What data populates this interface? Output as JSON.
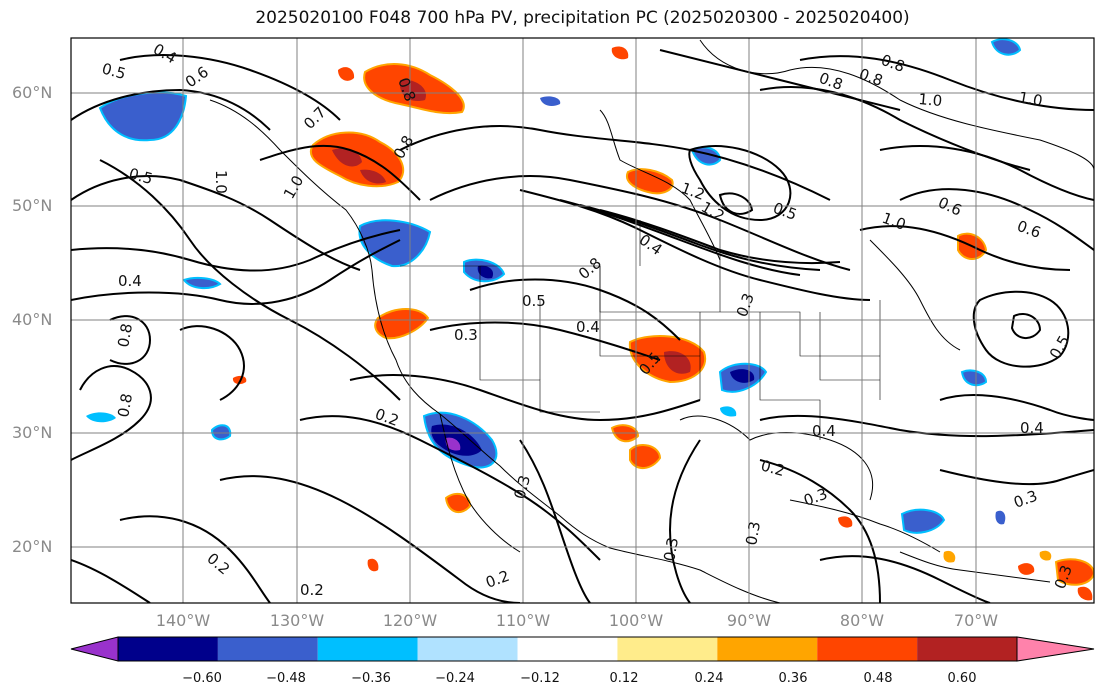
{
  "title": "2025020100 F048 700 hPa PV, precipitation PC (2025020300 - 2025020400)",
  "latitude_labels": [
    "60°N",
    "50°N",
    "40°N",
    "30°N",
    "20°N"
  ],
  "longitude_labels": [
    "140°W",
    "130°W",
    "120°W",
    "110°W",
    "100°W",
    "90°W",
    "80°W",
    "70°W"
  ],
  "colorbar": {
    "ticks": [
      "−0.60",
      "−0.48",
      "−0.36",
      "−0.24",
      "−0.12",
      "0.12",
      "0.24",
      "0.36",
      "0.48",
      "0.60"
    ],
    "colors": [
      "#9932cc",
      "#00008b",
      "#3a5fcd",
      "#00bfff",
      "#b0e2ff",
      "#ffffff",
      "#ffec8b",
      "#ffa500",
      "#ff4500",
      "#b22222",
      "#ff82ab"
    ]
  },
  "contour_labels": [
    "0.4",
    "0.5",
    "0.6",
    "0.7",
    "0.8",
    "1.0",
    "0.5",
    "0.8",
    "1.0",
    "0.8",
    "0.8",
    "0.4",
    "1.2",
    "0.4",
    "0.5",
    "0.4",
    "0.8",
    "0.3",
    "0.5",
    "0.6",
    "1.0",
    "1.0",
    "0.6",
    "0.5",
    "0.4",
    "0.4",
    "0.3",
    "0.2",
    "0.3",
    "0.3",
    "0.2",
    "0.3",
    "0.3",
    "0.2",
    "0.2",
    "0.2",
    "0.3",
    "0.3",
    "0.8",
    "0.8",
    "0.8",
    "1.0",
    "0.5",
    "1.2"
  ]
}
